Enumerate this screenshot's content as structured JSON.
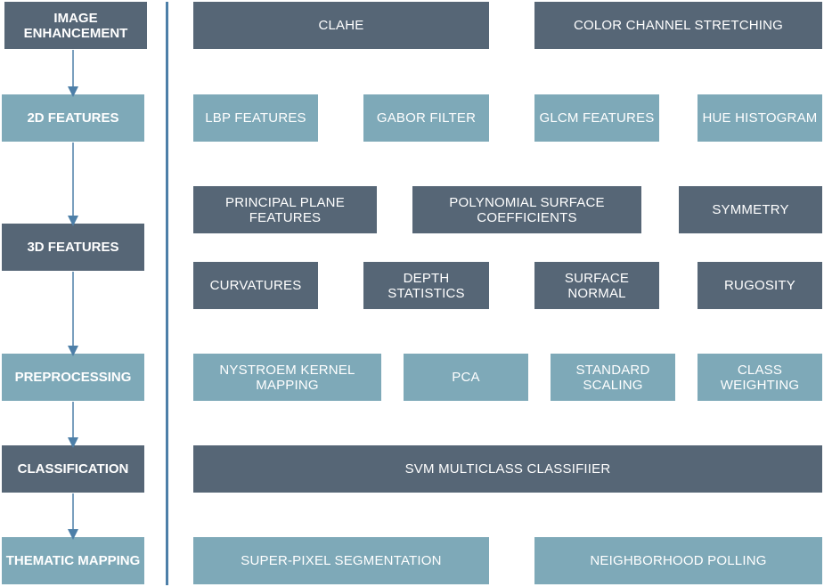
{
  "stages": {
    "image_enhancement": "IMAGE ENHANCEMENT",
    "features_2d": "2D FEATURES",
    "features_3d": "3D FEATURES",
    "preprocessing": "PREPROCESSING",
    "classification": "CLASSIFICATION",
    "thematic_mapping": "THEMATIC MAPPING"
  },
  "image_enhancement": {
    "clahe": "CLAHE",
    "color_channel_stretching": "COLOR CHANNEL STRETCHING"
  },
  "features_2d": {
    "lbp": "LBP FEATURES",
    "gabor": "GABOR FILTER",
    "glcm": "GLCM FEATURES",
    "hue": "HUE HISTOGRAM"
  },
  "features_3d": {
    "principal_plane": "PRINCIPAL PLANE FEATURES",
    "polynomial": "POLYNOMIAL SURFACE COEFFICIENTS",
    "symmetry": "SYMMETRY",
    "curvatures": "CURVATURES",
    "depth_stats": "DEPTH STATISTICS",
    "surface_normal": "SURFACE NORMAL",
    "rugosity": "RUGOSITY"
  },
  "preprocessing": {
    "nystroem": "NYSTROEM KERNEL MAPPING",
    "pca": "PCA",
    "standard_scaling": "STANDARD SCALING",
    "class_weighting": "CLASS WEIGHTING"
  },
  "classification": {
    "svm": "SVM MULTICLASS CLASSIFIIER"
  },
  "thematic_mapping": {
    "superpixel": "SUPER-PIXEL SEGMENTATION",
    "neighborhood": "NEIGHBORHOOD POLLING"
  },
  "colors": {
    "dark_box": "#566676",
    "light_box": "#7ea9b8",
    "arrow": "#4d7fa8",
    "text": "#ffffff"
  }
}
